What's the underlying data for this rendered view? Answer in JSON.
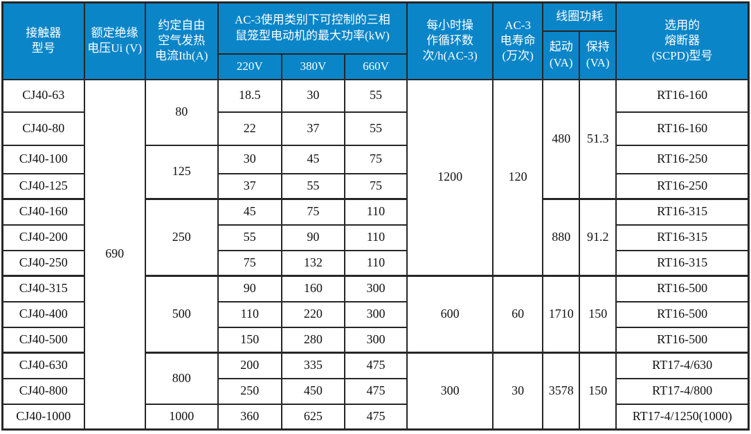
{
  "colors": {
    "header_bg": "#0a85c8",
    "header_text": "#ffffff",
    "border": "#262626",
    "body_bg": "#ffffff",
    "body_text": "#111111"
  },
  "table": {
    "header": {
      "contactor_model": "接触器\n型号",
      "rated_insulation_voltage": "额定绝缘\n电压Ui (V)",
      "thermal_current": "约定自由\n空气发热\n电流Ith(A)",
      "ac3_max_power": "AC-3使用类别下可控制的三相\n鼠笼型电动机的最大功率(kW)",
      "voltage_220": "220V",
      "voltage_380": "380V",
      "voltage_660": "660V",
      "cycles_per_hour": "每小时操\n作循环数\n次/h(AC-3)",
      "ac3_electrical_life": "AC-3\n电寿命\n(万次)",
      "coil_power": "线圈功耗",
      "pickup_va": "起动\n(VA)",
      "holding_va": "保持\n(VA)",
      "fuse_model": "选用的\n熔断器\n(SCPD)型号"
    },
    "rows": [
      [
        {
          "t": "CJ40-63"
        },
        {
          "t": "690",
          "rs": 13
        },
        {
          "t": "80",
          "rs": 2
        },
        {
          "t": "18.5"
        },
        {
          "t": "30"
        },
        {
          "t": "55"
        },
        {
          "t": "1200",
          "rs": 7
        },
        {
          "t": "120",
          "rs": 7
        },
        {
          "t": "480",
          "rs": 4
        },
        {
          "t": "51.3",
          "rs": 4
        },
        {
          "t": "RT16-160"
        }
      ],
      [
        {
          "t": "CJ40-80"
        },
        {
          "t": "22"
        },
        {
          "t": "37"
        },
        {
          "t": "55"
        },
        {
          "t": "RT16-160"
        }
      ],
      [
        {
          "t": "CJ40-100"
        },
        {
          "t": "125",
          "rs": 2
        },
        {
          "t": "30"
        },
        {
          "t": "45"
        },
        {
          "t": "75"
        },
        {
          "t": "RT16-250"
        }
      ],
      [
        {
          "t": "CJ40-125"
        },
        {
          "t": "37"
        },
        {
          "t": "55"
        },
        {
          "t": "75"
        },
        {
          "t": "RT16-250"
        }
      ],
      [
        {
          "t": "CJ40-160"
        },
        {
          "t": "250",
          "rs": 3
        },
        {
          "t": "45"
        },
        {
          "t": "75"
        },
        {
          "t": "110"
        },
        {
          "t": "880",
          "rs": 3
        },
        {
          "t": "91.2",
          "rs": 3
        },
        {
          "t": "RT16-315"
        }
      ],
      [
        {
          "t": "CJ40-200"
        },
        {
          "t": "55"
        },
        {
          "t": "90"
        },
        {
          "t": "110"
        },
        {
          "t": "RT16-315"
        }
      ],
      [
        {
          "t": "CJ40-250"
        },
        {
          "t": "75"
        },
        {
          "t": "132"
        },
        {
          "t": "110"
        },
        {
          "t": "RT16-315"
        }
      ],
      [
        {
          "t": "CJ40-315"
        },
        {
          "t": "500",
          "rs": 3
        },
        {
          "t": "90"
        },
        {
          "t": "160"
        },
        {
          "t": "300"
        },
        {
          "t": "600",
          "rs": 3
        },
        {
          "t": "60",
          "rs": 3
        },
        {
          "t": "1710",
          "rs": 3
        },
        {
          "t": "150",
          "rs": 3
        },
        {
          "t": "RT16-500"
        }
      ],
      [
        {
          "t": "CJ40-400"
        },
        {
          "t": "110"
        },
        {
          "t": "220"
        },
        {
          "t": "300"
        },
        {
          "t": "RT16-500"
        }
      ],
      [
        {
          "t": "CJ40-500"
        },
        {
          "t": "150"
        },
        {
          "t": "280"
        },
        {
          "t": "300"
        },
        {
          "t": "RT16-500"
        }
      ],
      [
        {
          "t": "CJ40-630"
        },
        {
          "t": "800",
          "rs": 2
        },
        {
          "t": "200"
        },
        {
          "t": "335"
        },
        {
          "t": "475"
        },
        {
          "t": "300",
          "rs": 3
        },
        {
          "t": "30",
          "rs": 3
        },
        {
          "t": "3578",
          "rs": 3
        },
        {
          "t": "150",
          "rs": 3
        },
        {
          "t": "RT17-4/630"
        }
      ],
      [
        {
          "t": "CJ40-800"
        },
        {
          "t": "250"
        },
        {
          "t": "450"
        },
        {
          "t": "475"
        },
        {
          "t": "RT17-4/800"
        }
      ],
      [
        {
          "t": "CJ40-1000"
        },
        {
          "t": "1000"
        },
        {
          "t": "360"
        },
        {
          "t": "625"
        },
        {
          "t": "475"
        },
        {
          "t": "RT17-4/1250(1000)"
        }
      ]
    ]
  }
}
